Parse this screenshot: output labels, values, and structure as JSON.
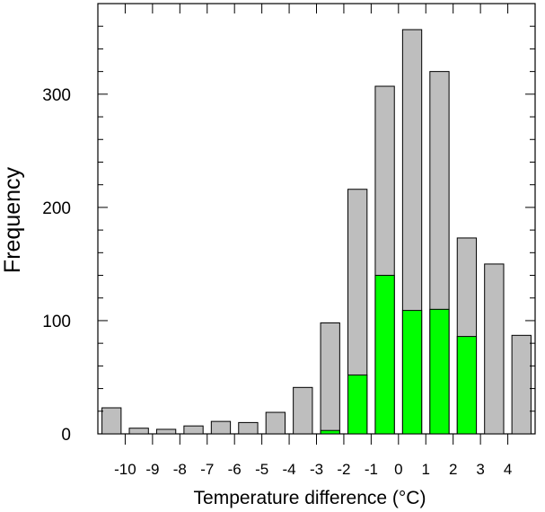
{
  "chart_data": {
    "type": "bar",
    "xlabel": "Temperature difference (°C)",
    "ylabel": "Frequency",
    "ylim": [
      0,
      380
    ],
    "y_ticks": [
      0,
      100,
      200,
      300
    ],
    "y_minor_step": 20,
    "x_tick_labels": [
      "-10",
      "-9",
      "-8",
      "-7",
      "-6",
      "-5",
      "-4",
      "-3",
      "-2",
      "-1",
      "0",
      "1",
      "2",
      "3",
      "4"
    ],
    "categories": [
      "-10.5",
      "-9.5",
      "-8.5",
      "-7.5",
      "-6.5",
      "-5.5",
      "-4.5",
      "-3.5",
      "-2.5",
      "-1.5",
      "-0.5",
      "0.5",
      "1.5",
      "2.5",
      "3.5",
      "4.5"
    ],
    "series": [
      {
        "color": "#bebebe",
        "values": [
          23,
          5,
          4,
          7,
          11,
          10,
          19,
          41,
          98,
          216,
          307,
          357,
          320,
          173,
          150,
          87
        ]
      },
      {
        "color": "#00ff00",
        "values": [
          0,
          0,
          0,
          0,
          0,
          0,
          0,
          0,
          3,
          52,
          140,
          109,
          110,
          86,
          0,
          0
        ]
      }
    ],
    "grid": false,
    "legend": "none"
  }
}
